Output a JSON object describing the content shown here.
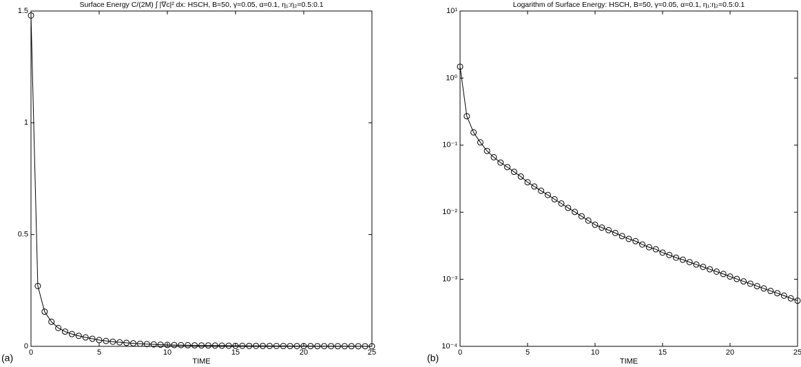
{
  "chart_data": [
    {
      "type": "line",
      "panel_label": "(a)",
      "title": "Surface Energy C/(2M) ∫ |∇c|² dx: HSCH, B=50, γ=0.05, α=0.1, η₁:η₂=0.5:0.1",
      "xlabel": "TIME",
      "x": [
        0,
        0.5,
        1,
        1.5,
        2,
        2.5,
        3,
        3.5,
        4,
        4.5,
        5,
        5.5,
        6,
        6.5,
        7,
        7.5,
        8,
        8.5,
        9,
        9.5,
        10,
        10.5,
        11,
        11.5,
        12,
        12.5,
        13,
        13.5,
        14,
        14.5,
        15,
        15.5,
        16,
        16.5,
        17,
        17.5,
        18,
        18.5,
        19,
        19.5,
        20,
        20.5,
        21,
        21.5,
        22,
        22.5,
        23,
        23.5,
        24,
        24.5,
        25
      ],
      "series": [
        {
          "color": "#000000",
          "marker": "circle",
          "values": [
            1.48,
            0.27,
            0.155,
            0.11,
            0.082,
            0.066,
            0.055,
            0.047,
            0.04,
            0.034,
            0.028,
            0.0242,
            0.0209,
            0.0181,
            0.0156,
            0.0135,
            0.0116,
            0.0101,
            0.0087,
            0.0075,
            0.0065,
            0.0059,
            0.0054,
            0.0049,
            0.0044,
            0.004,
            0.0037,
            0.0033,
            0.003,
            0.0028,
            0.0025,
            0.0023,
            0.0021,
            0.00196,
            0.0018,
            0.00166,
            0.00153,
            0.00141,
            0.0013,
            0.0012,
            0.0011,
            0.00101,
            0.00093,
            0.00086,
            0.00079,
            0.00073,
            0.00067,
            0.00062,
            0.00057,
            0.00052,
            0.00048
          ]
        }
      ],
      "xlim": [
        0,
        25
      ],
      "xticks": [
        0,
        5,
        10,
        15,
        20,
        25
      ],
      "ylim": [
        0,
        1.5
      ],
      "yticks": [
        0,
        0.5,
        1,
        1.5
      ],
      "yscale": "linear",
      "grid": false
    },
    {
      "type": "line",
      "panel_label": "(b)",
      "title": "Logarithm of Surface Energy: HSCH, B=50, γ=0.05, α=0.1, η₁:η₂=0.5:0.1",
      "xlabel": "TIME",
      "x": [
        0,
        0.5,
        1,
        1.5,
        2,
        2.5,
        3,
        3.5,
        4,
        4.5,
        5,
        5.5,
        6,
        6.5,
        7,
        7.5,
        8,
        8.5,
        9,
        9.5,
        10,
        10.5,
        11,
        11.5,
        12,
        12.5,
        13,
        13.5,
        14,
        14.5,
        15,
        15.5,
        16,
        16.5,
        17,
        17.5,
        18,
        18.5,
        19,
        19.5,
        20,
        20.5,
        21,
        21.5,
        22,
        22.5,
        23,
        23.5,
        24,
        24.5,
        25
      ],
      "series": [
        {
          "color": "#000000",
          "marker": "circle",
          "values": [
            1.48,
            0.27,
            0.155,
            0.11,
            0.082,
            0.066,
            0.055,
            0.047,
            0.04,
            0.034,
            0.028,
            0.0242,
            0.0209,
            0.0181,
            0.0156,
            0.0135,
            0.0116,
            0.0101,
            0.0087,
            0.0075,
            0.0065,
            0.0059,
            0.0054,
            0.0049,
            0.0044,
            0.004,
            0.0037,
            0.0033,
            0.003,
            0.0028,
            0.0025,
            0.0023,
            0.0021,
            0.00196,
            0.0018,
            0.00166,
            0.00153,
            0.00141,
            0.0013,
            0.0012,
            0.0011,
            0.00101,
            0.00093,
            0.00086,
            0.00079,
            0.00073,
            0.00067,
            0.00062,
            0.00057,
            0.00052,
            0.00048
          ]
        }
      ],
      "xlim": [
        0,
        25
      ],
      "xticks": [
        0,
        5,
        10,
        15,
        20,
        25
      ],
      "ylim": [
        0.0001,
        10
      ],
      "yticks": [
        {
          "value": 0.0001,
          "label": "10⁻⁴"
        },
        {
          "value": 0.001,
          "label": "10⁻³"
        },
        {
          "value": 0.01,
          "label": "10⁻²"
        },
        {
          "value": 0.1,
          "label": "10⁻¹"
        },
        {
          "value": 1,
          "label": "10⁰"
        },
        {
          "value": 10,
          "label": "10¹"
        }
      ],
      "yscale": "log",
      "grid": false
    }
  ]
}
